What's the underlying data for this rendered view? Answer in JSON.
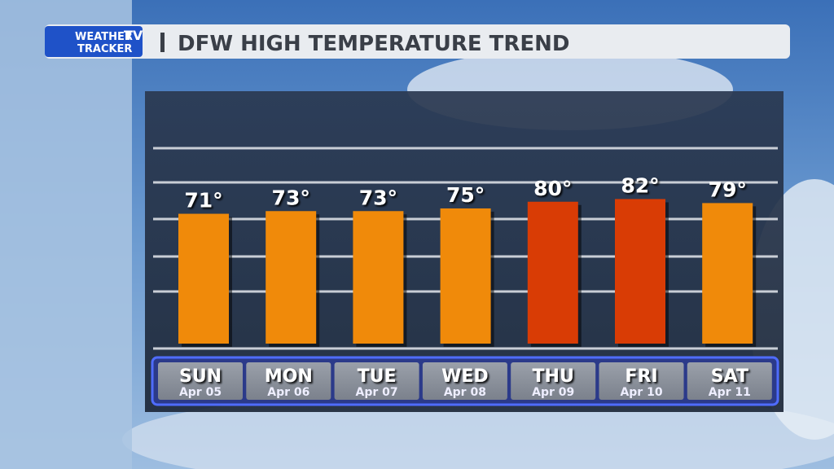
{
  "branding": {
    "line1": "WEATHER",
    "badge": "TV",
    "line2": "TRACKER"
  },
  "chart_data": {
    "type": "bar",
    "title": "DFW HIGH TEMPERATURE TREND",
    "categories": [
      "SUN",
      "MON",
      "TUE",
      "WED",
      "THU",
      "FRI",
      "SAT"
    ],
    "dates": [
      "Apr 05",
      "Apr 06",
      "Apr 07",
      "Apr 08",
      "Apr 09",
      "Apr 10",
      "Apr 11"
    ],
    "values": [
      71,
      73,
      73,
      75,
      80,
      82,
      79
    ],
    "value_labels": [
      "71°",
      "73°",
      "73°",
      "75°",
      "80°",
      "82°",
      "79°"
    ],
    "colors": [
      "#f08a0a",
      "#f08a0a",
      "#f08a0a",
      "#f08a0a",
      "#d93c05",
      "#d93c05",
      "#f08a0a"
    ],
    "ylim": [
      -26,
      120
    ]
  }
}
